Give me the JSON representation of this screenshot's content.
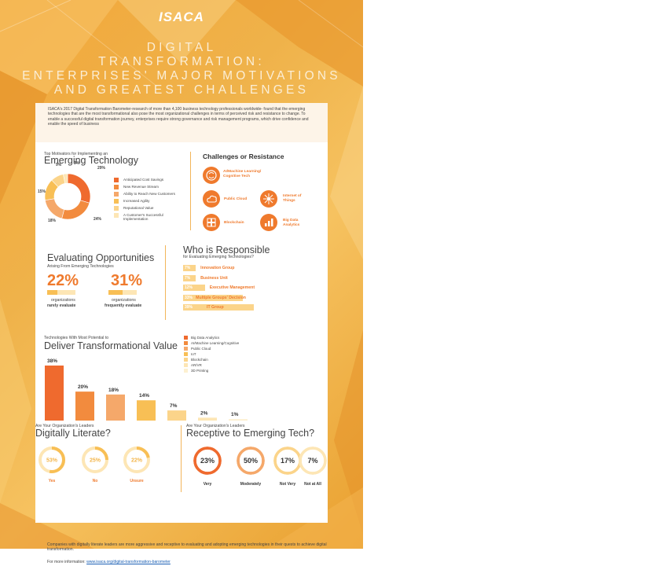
{
  "header": {
    "logo": "ISACA",
    "title_lines": [
      "DIGITAL",
      "TRANSFORMATION:",
      "ENTERPRISES' MAJOR MOTIVATIONS",
      "AND GREATEST CHALLENGES"
    ]
  },
  "intro": "ISACA's 2017 Digital Transformation Barometer-research of more than 4,100 business technology professionals worldwide- found that the emerging technologies that are the most transformational also pose the most organizational challenges in terms of perceived risk and resistance to change. To enable a successful digital transformation journey, enterprises require strong governance and risk management programs, which drive confidence and enable the speed of business",
  "motivators": {
    "subtitle": "Top Motivators for Implementing an",
    "title": "Emerging Technology"
  },
  "challenges": {
    "title": "Challenges or Resistance",
    "items": [
      {
        "label": "AI/Machine Learning/ Cognitive Tech",
        "icon": "brain-icon"
      },
      {
        "label": "Public Cloud",
        "icon": "cloud-icon"
      },
      {
        "label": "Internet of Things",
        "icon": "network-icon"
      },
      {
        "label": "Blockchain",
        "icon": "blocks-icon"
      },
      {
        "label": "Big Data Analytics",
        "icon": "data-icon"
      }
    ]
  },
  "evaluating": {
    "title": "Evaluating Opportunities",
    "subtitle": "Arising From Emerging Technologies",
    "left_pct": "22%",
    "left_caption": "organizations",
    "left_bold": "rarely evaluate",
    "right_pct": "31%",
    "right_caption": "organizations",
    "right_bold": "frequently evaluate"
  },
  "responsible": {
    "title": "Who is Responsible",
    "subtitle": "for Evaluating Emerging Technologies?"
  },
  "transformational": {
    "subtitle": "Technologies With Most Potential to",
    "title": "Deliver Transformational Value"
  },
  "literate": {
    "subtitle": "Are Your Organization's Leaders",
    "title": "Digitally Literate?"
  },
  "receptive": {
    "subtitle": "Are Your Organization's Leaders",
    "title": "Receptive to Emerging Tech?"
  },
  "footer": {
    "text": "Companies with digitally literate leaders are more aggressive and receptive to evaluating and adopting emerging technologies in their quests to achieve digital transformation.",
    "more_label": "For more information:",
    "link": "www.isaca.org/digital-transformation-barometer"
  },
  "colors": {
    "dark_orange": "#ef6a2e",
    "orange": "#f28b3e",
    "light_orange": "#f5a86a",
    "amber": "#f8bf55",
    "pale": "#fbd48a",
    "cream": "#fde6b5",
    "pale_cream": "#fdf0d0"
  },
  "chart_data": [
    {
      "type": "pie",
      "labels": [
        "Anticipated Cost Savings",
        "New Revenue Stream",
        "Ability to Reach New Customers",
        "Increased Agility",
        "Reputational Value",
        "A Customer's Successful Implementation"
      ],
      "values": [
        29,
        24,
        18,
        15,
        9,
        3
      ],
      "value_labels": [
        "29%",
        "24%",
        "18%",
        "15%",
        "9%",
        "3%"
      ],
      "colors": [
        "#ef6a2e",
        "#f28b3e",
        "#f5a86a",
        "#f8bf55",
        "#fbd48a",
        "#fde6b5"
      ],
      "title": "Emerging Technology"
    },
    {
      "type": "bar",
      "labels": [
        "Innovation Group",
        "Business Unit",
        "Executive Management",
        "Multiple Groups' Decision",
        "IT Group"
      ],
      "values": [
        7,
        7,
        12,
        33,
        39
      ],
      "value_labels": [
        "7%",
        "7%",
        "12%",
        "33%",
        "39%"
      ],
      "title": "Who is Responsible"
    },
    {
      "type": "bar",
      "categories": [
        "Big Data Analytics",
        "AI/Machine Learning/Cognitive",
        "Public Cloud",
        "IoT",
        "Blockchain",
        "AR/VR",
        "3D Printing"
      ],
      "values": [
        38,
        20,
        18,
        14,
        7,
        2,
        1
      ],
      "value_labels": [
        "38%",
        "20%",
        "18%",
        "14%",
        "7%",
        "2%",
        "1%"
      ],
      "colors": [
        "#ef6a2e",
        "#f28b3e",
        "#f5a86a",
        "#f8bf55",
        "#fbd48a",
        "#fde6b5",
        "#fdf0d0"
      ],
      "title": "Deliver Transformational Value"
    },
    {
      "type": "pie",
      "labels": [
        "Yes",
        "No",
        "Unsure"
      ],
      "values": [
        53,
        25,
        22
      ],
      "value_labels": [
        "53%",
        "25%",
        "22%"
      ],
      "title": "Digitally Literate?"
    },
    {
      "type": "pie",
      "labels": [
        "Very",
        "Moderately",
        "Not Very",
        "Not at All"
      ],
      "values": [
        23,
        50,
        17,
        7
      ],
      "value_labels": [
        "23%",
        "50%",
        "17%",
        "7%"
      ],
      "title": "Receptive to Emerging Tech?"
    }
  ]
}
